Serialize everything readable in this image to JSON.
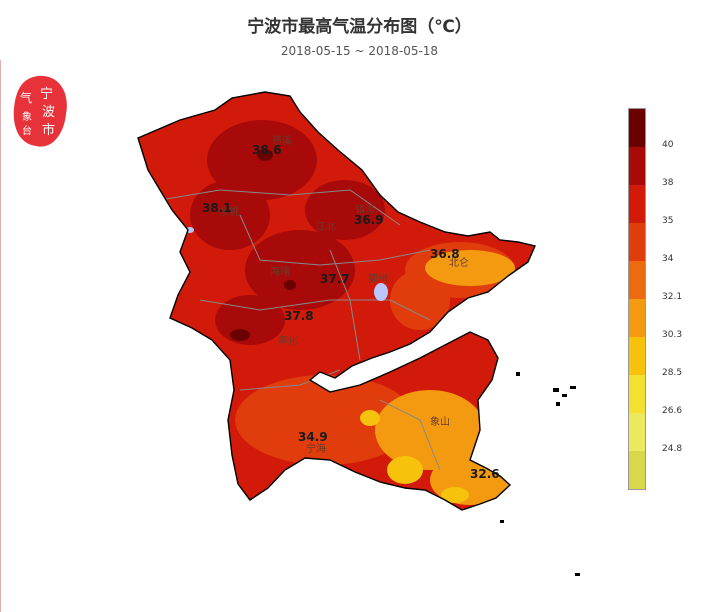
{
  "title": "宁波市最高气温分布图（℃）",
  "subtitle": "2018-05-15 ~ 2018-05-18",
  "logo": {
    "text": "宁波市气象台",
    "color": "#e8323a"
  },
  "legend": {
    "labels": [
      "40",
      "38",
      "35",
      "34",
      "32.1",
      "30.3",
      "28.5",
      "26.6",
      "24.8"
    ],
    "colors": [
      "#6b0000",
      "#a80a0a",
      "#d21a0a",
      "#e03c0c",
      "#ec6a10",
      "#f49a10",
      "#f6c20c",
      "#f4e030",
      "#ece860",
      "#d8d84a"
    ]
  },
  "stations": [
    {
      "value": "38.6",
      "name": ""
    },
    {
      "value": "38.1",
      "name": ""
    },
    {
      "value": "36.9",
      "name": ""
    },
    {
      "value": "36.8",
      "name": "北仑"
    },
    {
      "value": "37.7",
      "name": "鄞州"
    },
    {
      "value": "37.8",
      "name": "奉化"
    },
    {
      "value": "34.9",
      "name": "宁海"
    },
    {
      "value": "32.6",
      "name": ""
    }
  ],
  "places": [
    "余姚",
    "慈溪",
    "镇海",
    "江北",
    "海曙",
    "象山"
  ],
  "colors": {
    "map_base": "#d21a0a",
    "map_hot": "#a80a0a",
    "map_warm": "#e03c0c",
    "map_cool": "#f49a10",
    "boundary": "#888888",
    "coast": "#000000"
  }
}
